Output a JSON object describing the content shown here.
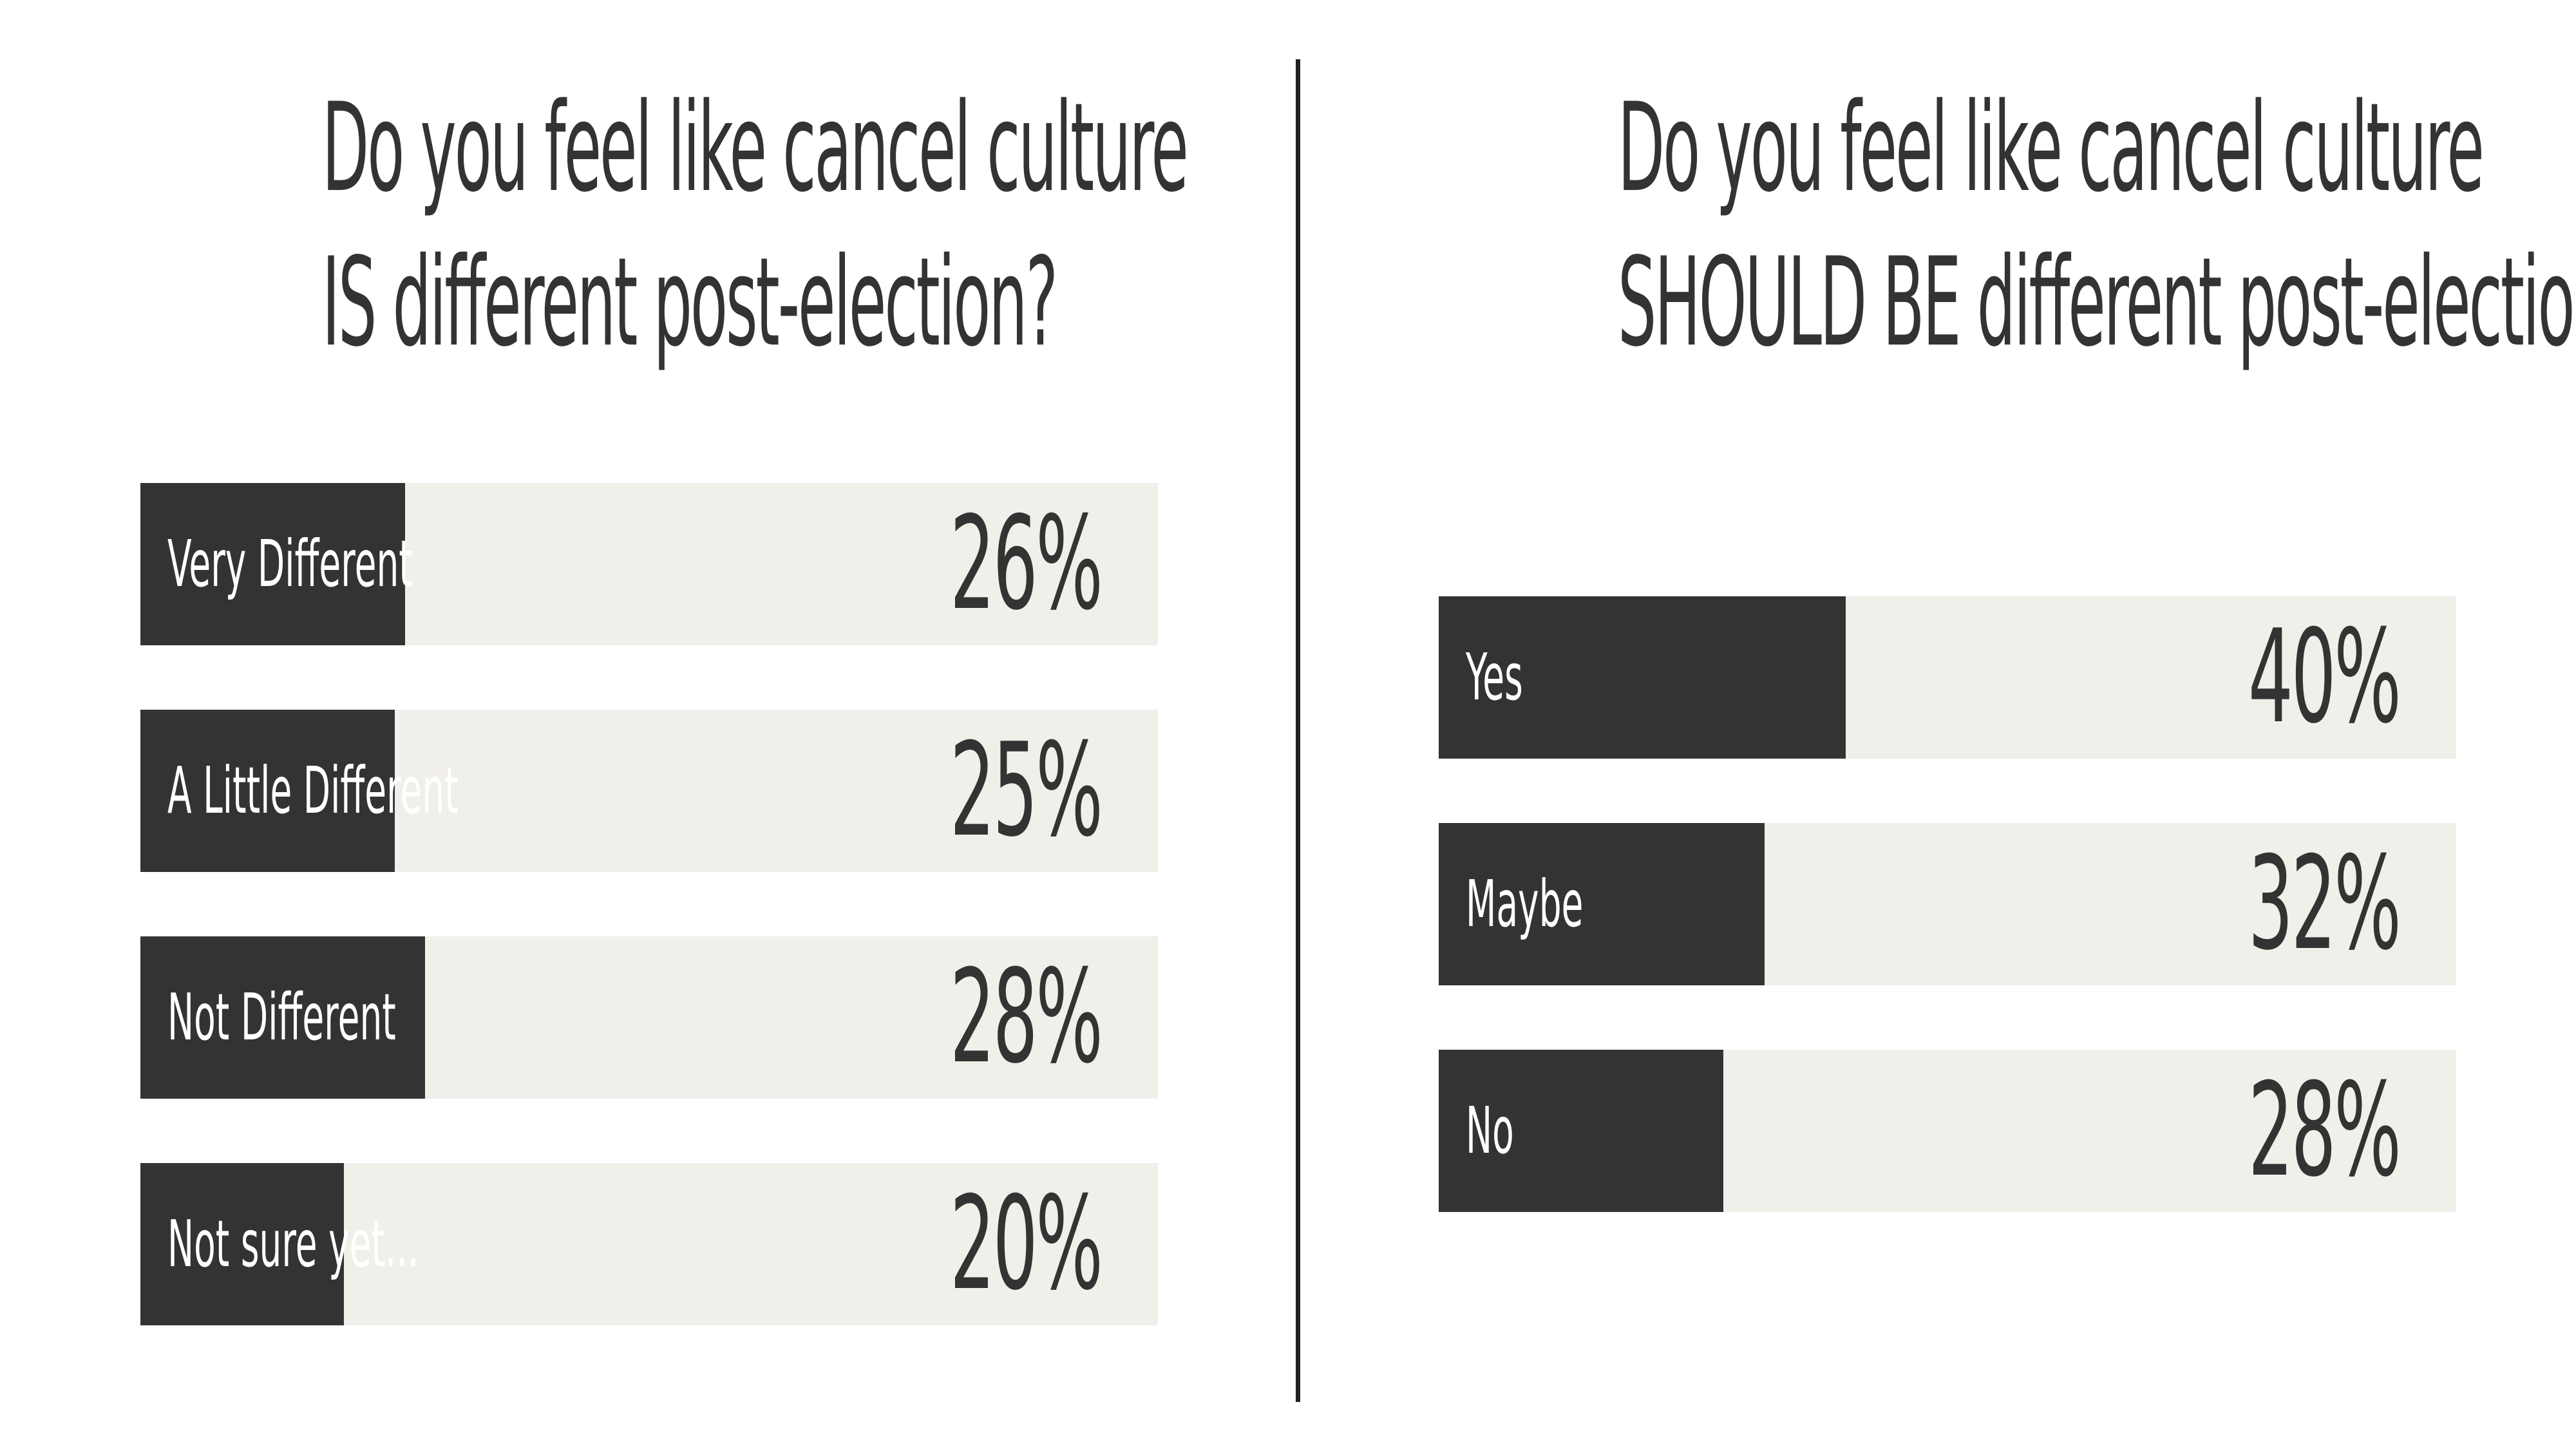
{
  "colors": {
    "bar_fill": "#333333",
    "bar_track": "#f1efe9",
    "label_text": "#ffffff",
    "value_text": "#333333",
    "divider": "#222222"
  },
  "chart_data": [
    {
      "type": "bar",
      "orientation": "horizontal",
      "title_lines": [
        "Do you feel like cancel culture",
        "IS different post-election?"
      ],
      "categories": [
        "Very Different",
        "A Little Different",
        "Not Different",
        "Not sure yet..."
      ],
      "values": [
        26,
        25,
        28,
        20
      ],
      "value_labels": [
        "26%",
        "25%",
        "28%",
        "20%"
      ],
      "xlim": [
        0,
        100
      ],
      "grid": false,
      "legend": "none"
    },
    {
      "type": "bar",
      "orientation": "horizontal",
      "title_lines": [
        "Do you feel like cancel culture",
        "SHOULD BE different post-election?"
      ],
      "categories": [
        "Yes",
        "Maybe",
        "No"
      ],
      "values": [
        40,
        32,
        28
      ],
      "value_labels": [
        "40%",
        "32%",
        "28%"
      ],
      "xlim": [
        0,
        100
      ],
      "grid": false,
      "legend": "none"
    }
  ]
}
